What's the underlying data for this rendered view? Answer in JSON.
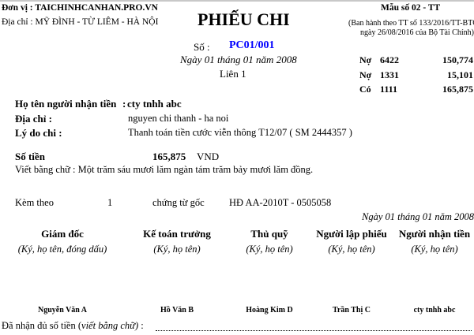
{
  "header": {
    "unit": "Đơn vị : TAICHINHCANHAN.PRO.VN",
    "address": "Địa chỉ : MỸ ĐÌNH - TỪ LIÊM - HÀ NỘI",
    "title": "PHIẾU CHI",
    "form_no": "Mẫu số 02 - TT",
    "issued_line1": "(Ban hành theo TT số 133/2016/TT-BTC",
    "issued_line2": "ngày 26/08/2016 của Bộ Tài Chính)",
    "so_label": "Số :",
    "so_value": "PC01/001",
    "date": "Ngày 01 tháng 01 năm 2008",
    "lien": "Liên 1",
    "accent_color": "#0000ff"
  },
  "accounts": [
    {
      "type": "Nợ",
      "code": "6422",
      "amount": "150,774"
    },
    {
      "type": "Nợ",
      "code": "1331",
      "amount": "15,101"
    },
    {
      "type": "Có",
      "code": "1111",
      "amount": "165,875"
    }
  ],
  "body": {
    "recipient_label": "Họ tên người nhận tiền",
    "recipient_value": "cty tnhh abc",
    "address_label": "Địa chỉ :",
    "address_value": "nguyen chi thanh - ha noi",
    "reason_label": "Lý do chi :",
    "reason_value": "Thanh toán tiền cước viễn thông T12/07 ( SM 2444357 )",
    "amount_label": "Số tiền",
    "amount_value": "165,875",
    "currency": "VND",
    "words": "Viết bằng chữ : Một trăm sáu mươi lăm ngàn tám trăm bảy mươi lăm đồng.",
    "attach_label": "Kèm theo",
    "attach_count": "1",
    "attach_doc": "chứng từ gốc",
    "attach_ref": "HĐ AA-2010T - 0505058"
  },
  "sign_date": "Ngày  01 tháng 01 năm 2008",
  "signatures": [
    {
      "role": "Giám đốc",
      "note": "(Ký, họ tên, đóng dấu)",
      "name": "Nguyễn Văn A"
    },
    {
      "role": "Kế toán trưởng",
      "note": "(Ký, họ tên)",
      "name": "Hồ Văn B"
    },
    {
      "role": "Thủ quỹ",
      "note": "(Ký, họ tên)",
      "name": "Hoàng Kim D"
    },
    {
      "role": "Người lập phiếu",
      "note": "(Ký, họ tên)",
      "name": "Trần Thị C"
    },
    {
      "role": "Người nhận tiền",
      "note": "(Ký, họ tên)",
      "name": "cty tnhh abc"
    }
  ],
  "footer": {
    "received_prefix": "Đã nhận đủ số tiền (",
    "received_italic": "viết bằng chữ)",
    "received_suffix": " :"
  }
}
